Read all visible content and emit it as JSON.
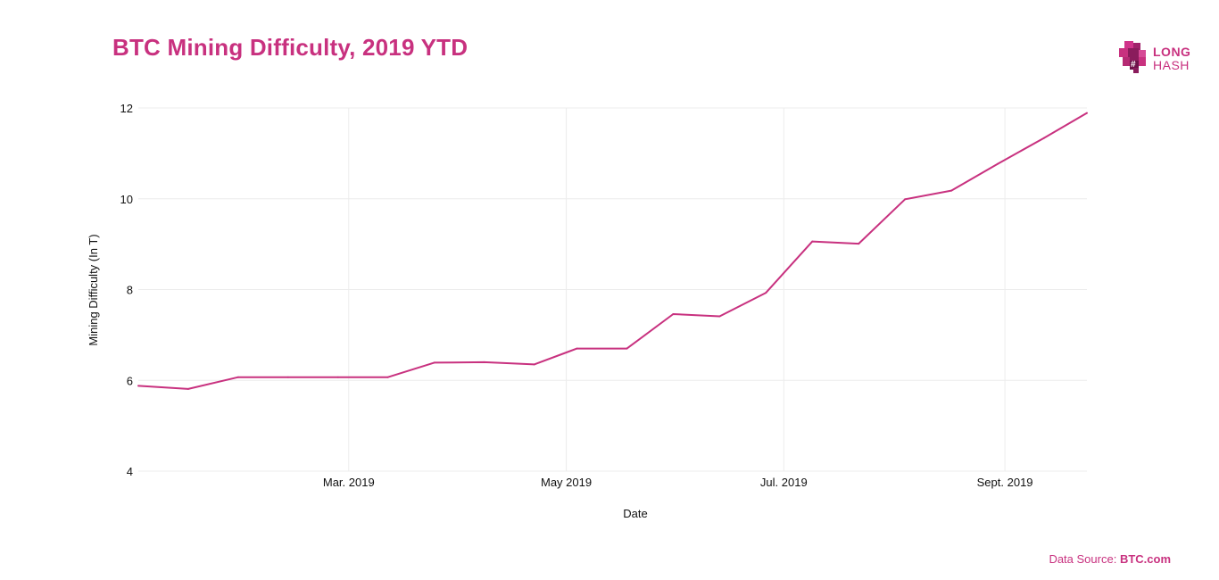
{
  "title": "BTC Mining Difficulty, 2019 YTD",
  "brand": {
    "logo_line1": "LONG",
    "logo_line2": "HASH",
    "logo_icon": "longhash-cube-icon"
  },
  "source": {
    "prefix": "Data Source: ",
    "name": "BTC.com"
  },
  "colors": {
    "accent": "#c8317f",
    "line": "#c8317f",
    "grid": "#ececec",
    "text": "#111111"
  },
  "chart_data": {
    "type": "line",
    "title": "BTC Mining Difficulty, 2019 YTD",
    "xlabel": "Date",
    "ylabel": "Mining Difficulty (In T)",
    "xlim": [
      "2019-01-01",
      "2019-09-24"
    ],
    "ylim": [
      4,
      12
    ],
    "x_ticks": [
      {
        "date": "2019-03-01",
        "label": "Mar. 2019"
      },
      {
        "date": "2019-05-01",
        "label": "May 2019"
      },
      {
        "date": "2019-07-01",
        "label": "Jul. 2019"
      },
      {
        "date": "2019-09-01",
        "label": "Sept. 2019"
      }
    ],
    "y_ticks": [
      4,
      6,
      8,
      10,
      12
    ],
    "grid": true,
    "series": [
      {
        "x": [
          "2019-01-01",
          "2019-01-15",
          "2019-01-29",
          "2019-02-12",
          "2019-02-26",
          "2019-03-12",
          "2019-03-25",
          "2019-04-08",
          "2019-04-22",
          "2019-05-04",
          "2019-05-18",
          "2019-05-31",
          "2019-06-13",
          "2019-06-26",
          "2019-07-09",
          "2019-07-22",
          "2019-08-04",
          "2019-08-17",
          "2019-08-30",
          "2019-09-12",
          "2019-09-24"
        ],
        "y": [
          5.88,
          5.81,
          6.07,
          6.07,
          6.07,
          6.07,
          6.39,
          6.4,
          6.35,
          6.7,
          6.7,
          7.46,
          7.41,
          7.93,
          9.06,
          9.01,
          9.99,
          10.18,
          10.77,
          11.34,
          11.89
        ]
      }
    ]
  }
}
